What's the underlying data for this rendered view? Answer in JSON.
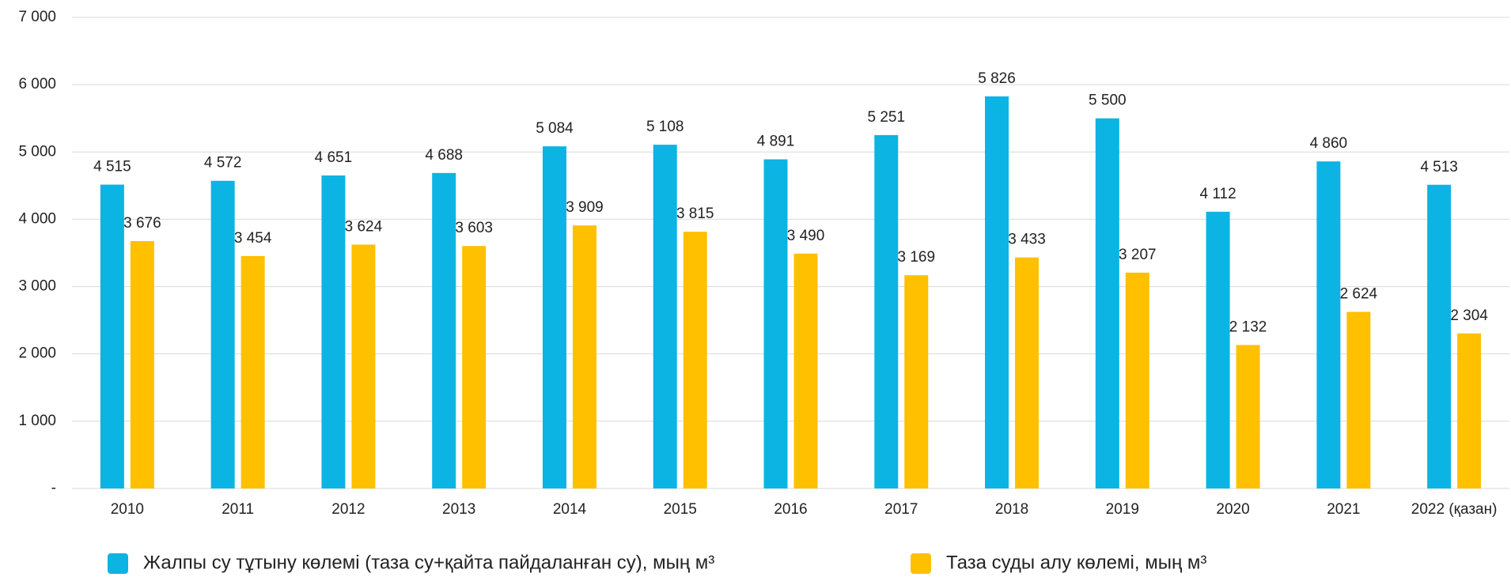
{
  "chart_data": {
    "type": "bar",
    "categories": [
      "2010",
      "2011",
      "2012",
      "2013",
      "2014",
      "2015",
      "2016",
      "2017",
      "2018",
      "2019",
      "2020",
      "2021",
      "2022 (қазан)"
    ],
    "series": [
      {
        "name": "Жалпы су тұтыну көлемі (таза су+қайта пайдаланған су), мың м³",
        "color": "#0cb4e4",
        "values": [
          4515,
          4572,
          4651,
          4688,
          5084,
          5108,
          4891,
          5251,
          5826,
          5500,
          4112,
          4860,
          4513
        ],
        "value_labels": [
          "4 515",
          "4 572",
          "4 651",
          "4 688",
          "5 084",
          "5 108",
          "4 891",
          "5 251",
          "5 826",
          "5 500",
          "4 112",
          "4 860",
          "4 513"
        ]
      },
      {
        "name": "Таза суды алу көлемі, мың м³",
        "color": "#ffc000",
        "values": [
          3676,
          3454,
          3624,
          3603,
          3909,
          3815,
          3490,
          3169,
          3433,
          3207,
          2132,
          2624,
          2304
        ],
        "value_labels": [
          "3 676",
          "3 454",
          "3 624",
          "3 603",
          "3 909",
          "3 815",
          "3 490",
          "3 169",
          "3 433",
          "3 207",
          "2 132",
          "2 624",
          "2 304"
        ]
      }
    ],
    "ylim": [
      0,
      7000
    ],
    "yticks": [
      {
        "value": 0,
        "label": "-"
      },
      {
        "value": 1000,
        "label": "1 000"
      },
      {
        "value": 2000,
        "label": "2 000"
      },
      {
        "value": 3000,
        "label": "3 000"
      },
      {
        "value": 4000,
        "label": "4 000"
      },
      {
        "value": 5000,
        "label": "5 000"
      },
      {
        "value": 6000,
        "label": "6 000"
      },
      {
        "value": 7000,
        "label": "7 000"
      }
    ],
    "grid": true,
    "legend": "bottom"
  }
}
